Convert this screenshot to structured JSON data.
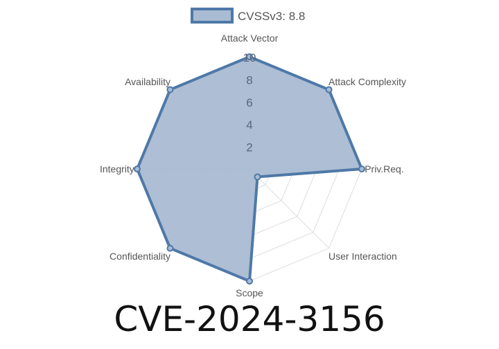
{
  "chart_data": {
    "type": "radar",
    "title": "CVE-2024-3156",
    "categories": [
      "Attack Vector",
      "Attack Complexity",
      "Priv.Req.",
      "User Interaction",
      "Scope",
      "Confidentiality",
      "Integrity",
      "Availability"
    ],
    "series": [
      {
        "name": "CVSSv3: 8.8",
        "values": [
          10,
          10,
          10,
          1,
          10,
          10,
          10,
          10
        ]
      }
    ],
    "rlim": [
      0,
      10
    ],
    "ticks": [
      "2",
      "4",
      "6",
      "8",
      "10"
    ],
    "grid": true,
    "legend": "top",
    "colors": {
      "fill": "#a9bbd3",
      "stroke": "#4e79a7",
      "grid": "#dddddd",
      "tick": "#5b6678"
    }
  }
}
